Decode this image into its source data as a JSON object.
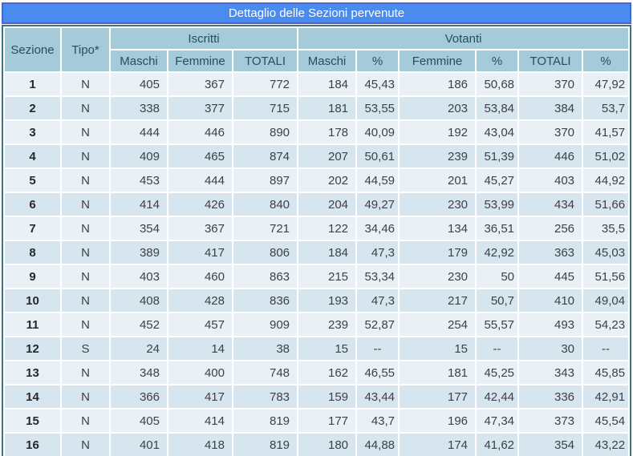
{
  "title": "Dettaglio delle Sezioni pervenute",
  "table": {
    "headers": {
      "sezione": "Sezione",
      "tipo": "Tipo*",
      "iscritti": "Iscritti",
      "votanti": "Votanti"
    },
    "sub_headers": [
      "Maschi",
      "Femmine",
      "TOTALI",
      "Maschi",
      "%",
      "Femmine",
      "%",
      "TOTALI",
      "%"
    ],
    "column_keys": [
      "sezione",
      "tipo",
      "iscritti-maschi",
      "iscritti-femmine",
      "iscritti-totali",
      "votanti-maschi",
      "votanti-maschi-pct",
      "votanti-femmine",
      "votanti-femmine-pct",
      "votanti-totali",
      "votanti-totali-pct"
    ],
    "rows": [
      [
        "1",
        "N",
        "405",
        "367",
        "772",
        "184",
        "45,43",
        "186",
        "50,68",
        "370",
        "47,92"
      ],
      [
        "2",
        "N",
        "338",
        "377",
        "715",
        "181",
        "53,55",
        "203",
        "53,84",
        "384",
        "53,7"
      ],
      [
        "3",
        "N",
        "444",
        "446",
        "890",
        "178",
        "40,09",
        "192",
        "43,04",
        "370",
        "41,57"
      ],
      [
        "4",
        "N",
        "409",
        "465",
        "874",
        "207",
        "50,61",
        "239",
        "51,39",
        "446",
        "51,02"
      ],
      [
        "5",
        "N",
        "453",
        "444",
        "897",
        "202",
        "44,59",
        "201",
        "45,27",
        "403",
        "44,92"
      ],
      [
        "6",
        "N",
        "414",
        "426",
        "840",
        "204",
        "49,27",
        "230",
        "53,99",
        "434",
        "51,66"
      ],
      [
        "7",
        "N",
        "354",
        "367",
        "721",
        "122",
        "34,46",
        "134",
        "36,51",
        "256",
        "35,5"
      ],
      [
        "8",
        "N",
        "389",
        "417",
        "806",
        "184",
        "47,3",
        "179",
        "42,92",
        "363",
        "45,03"
      ],
      [
        "9",
        "N",
        "403",
        "460",
        "863",
        "215",
        "53,34",
        "230",
        "50",
        "445",
        "51,56"
      ],
      [
        "10",
        "N",
        "408",
        "428",
        "836",
        "193",
        "47,3",
        "217",
        "50,7",
        "410",
        "49,04"
      ],
      [
        "11",
        "N",
        "452",
        "457",
        "909",
        "239",
        "52,87",
        "254",
        "55,57",
        "493",
        "54,23"
      ],
      [
        "12",
        "S",
        "24",
        "14",
        "38",
        "15",
        "--",
        "15",
        "--",
        "30",
        "--"
      ],
      [
        "13",
        "N",
        "348",
        "400",
        "748",
        "162",
        "46,55",
        "181",
        "45,25",
        "343",
        "45,85"
      ],
      [
        "14",
        "N",
        "366",
        "417",
        "783",
        "159",
        "43,44",
        "177",
        "42,44",
        "336",
        "42,91"
      ],
      [
        "15",
        "N",
        "405",
        "414",
        "819",
        "177",
        "43,7",
        "196",
        "47,34",
        "373",
        "45,54"
      ],
      [
        "16",
        "N",
        "401",
        "418",
        "819",
        "180",
        "44,88",
        "174",
        "41,62",
        "354",
        "43,22"
      ]
    ]
  },
  "colors": {
    "title_bar_bg": "#4a8bef",
    "title_bar_border": "#4468cf",
    "title_text": "#ffffff",
    "header_bg": "#a5cad8",
    "header_text": "#24505c",
    "row_odd_bg": "#e9f1f7",
    "row_even_bg": "#d7e5ef",
    "body_border": "#3a7483",
    "data_text": "#3b4148"
  }
}
